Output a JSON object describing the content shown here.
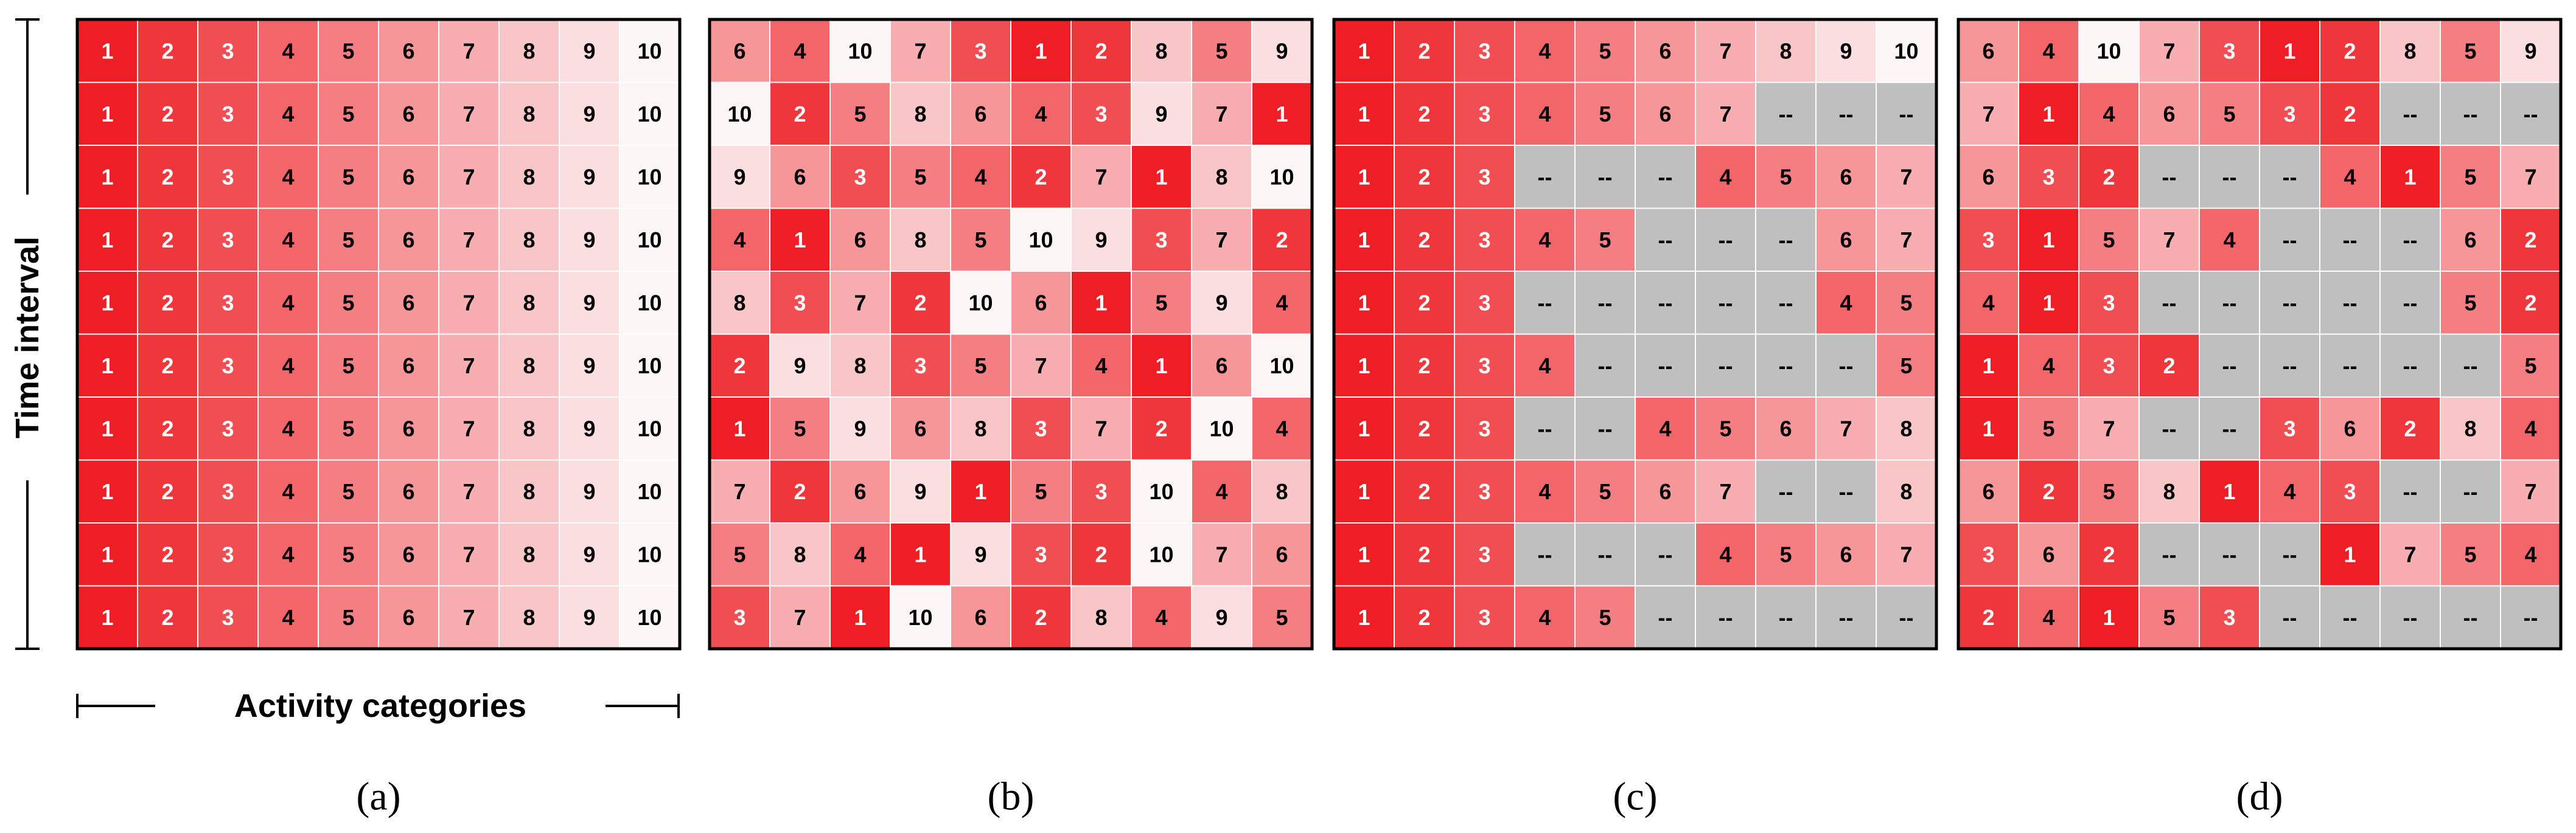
{
  "y_label": "Time interval",
  "x_label": "Activity categories",
  "panels": [
    {
      "caption": "(a)",
      "rows": [
        [
          1,
          2,
          3,
          4,
          5,
          6,
          7,
          8,
          9,
          10
        ],
        [
          1,
          2,
          3,
          4,
          5,
          6,
          7,
          8,
          9,
          10
        ],
        [
          1,
          2,
          3,
          4,
          5,
          6,
          7,
          8,
          9,
          10
        ],
        [
          1,
          2,
          3,
          4,
          5,
          6,
          7,
          8,
          9,
          10
        ],
        [
          1,
          2,
          3,
          4,
          5,
          6,
          7,
          8,
          9,
          10
        ],
        [
          1,
          2,
          3,
          4,
          5,
          6,
          7,
          8,
          9,
          10
        ],
        [
          1,
          2,
          3,
          4,
          5,
          6,
          7,
          8,
          9,
          10
        ],
        [
          1,
          2,
          3,
          4,
          5,
          6,
          7,
          8,
          9,
          10
        ],
        [
          1,
          2,
          3,
          4,
          5,
          6,
          7,
          8,
          9,
          10
        ],
        [
          1,
          2,
          3,
          4,
          5,
          6,
          7,
          8,
          9,
          10
        ]
      ]
    },
    {
      "caption": "(b)",
      "rows": [
        [
          6,
          4,
          10,
          7,
          3,
          1,
          2,
          8,
          5,
          9
        ],
        [
          10,
          2,
          5,
          8,
          6,
          4,
          3,
          9,
          7,
          1
        ],
        [
          9,
          6,
          3,
          5,
          4,
          2,
          7,
          1,
          8,
          10
        ],
        [
          4,
          1,
          6,
          8,
          5,
          10,
          9,
          3,
          7,
          2
        ],
        [
          8,
          3,
          7,
          2,
          10,
          6,
          1,
          5,
          9,
          4
        ],
        [
          2,
          9,
          8,
          3,
          5,
          7,
          4,
          1,
          6,
          10
        ],
        [
          1,
          5,
          9,
          6,
          8,
          3,
          7,
          2,
          10,
          4
        ],
        [
          7,
          2,
          6,
          9,
          1,
          5,
          3,
          10,
          4,
          8
        ],
        [
          5,
          8,
          4,
          1,
          9,
          3,
          2,
          10,
          7,
          6
        ],
        [
          3,
          7,
          1,
          10,
          6,
          2,
          8,
          4,
          9,
          5
        ]
      ]
    },
    {
      "caption": "(c)",
      "rows": [
        [
          1,
          2,
          3,
          4,
          5,
          6,
          7,
          8,
          9,
          10
        ],
        [
          1,
          2,
          3,
          4,
          5,
          6,
          7,
          "--",
          "--",
          "--"
        ],
        [
          1,
          2,
          3,
          "--",
          "--",
          "--",
          4,
          5,
          6,
          7
        ],
        [
          1,
          2,
          3,
          4,
          5,
          "--",
          "--",
          "--",
          6,
          7
        ],
        [
          1,
          2,
          3,
          "--",
          "--",
          "--",
          "--",
          "--",
          4,
          5
        ],
        [
          1,
          2,
          3,
          4,
          "--",
          "--",
          "--",
          "--",
          "--",
          5
        ],
        [
          1,
          2,
          3,
          "--",
          "--",
          4,
          5,
          6,
          7,
          8
        ],
        [
          1,
          2,
          3,
          4,
          5,
          6,
          7,
          "--",
          "--",
          8
        ],
        [
          1,
          2,
          3,
          "--",
          "--",
          "--",
          4,
          5,
          6,
          7
        ],
        [
          1,
          2,
          3,
          4,
          5,
          "--",
          "--",
          "--",
          "--",
          "--"
        ]
      ]
    },
    {
      "caption": "(d)",
      "rows": [
        [
          6,
          4,
          10,
          7,
          3,
          1,
          2,
          8,
          5,
          9
        ],
        [
          7,
          1,
          4,
          6,
          5,
          3,
          2,
          "--",
          "--",
          "--"
        ],
        [
          6,
          3,
          2,
          "--",
          "--",
          "--",
          4,
          1,
          5,
          7
        ],
        [
          3,
          1,
          5,
          7,
          4,
          "--",
          "--",
          "--",
          6,
          2
        ],
        [
          4,
          1,
          3,
          "--",
          "--",
          "--",
          "--",
          "--",
          5,
          2
        ],
        [
          1,
          4,
          3,
          2,
          "--",
          "--",
          "--",
          "--",
          "--",
          5
        ],
        [
          1,
          5,
          7,
          "--",
          "--",
          3,
          6,
          2,
          8,
          4
        ],
        [
          6,
          2,
          5,
          8,
          1,
          4,
          3,
          "--",
          "--",
          7
        ],
        [
          3,
          6,
          2,
          "--",
          "--",
          "--",
          1,
          7,
          5,
          4
        ],
        [
          2,
          4,
          1,
          5,
          3,
          "--",
          "--",
          "--",
          "--",
          "--"
        ]
      ]
    }
  ]
}
